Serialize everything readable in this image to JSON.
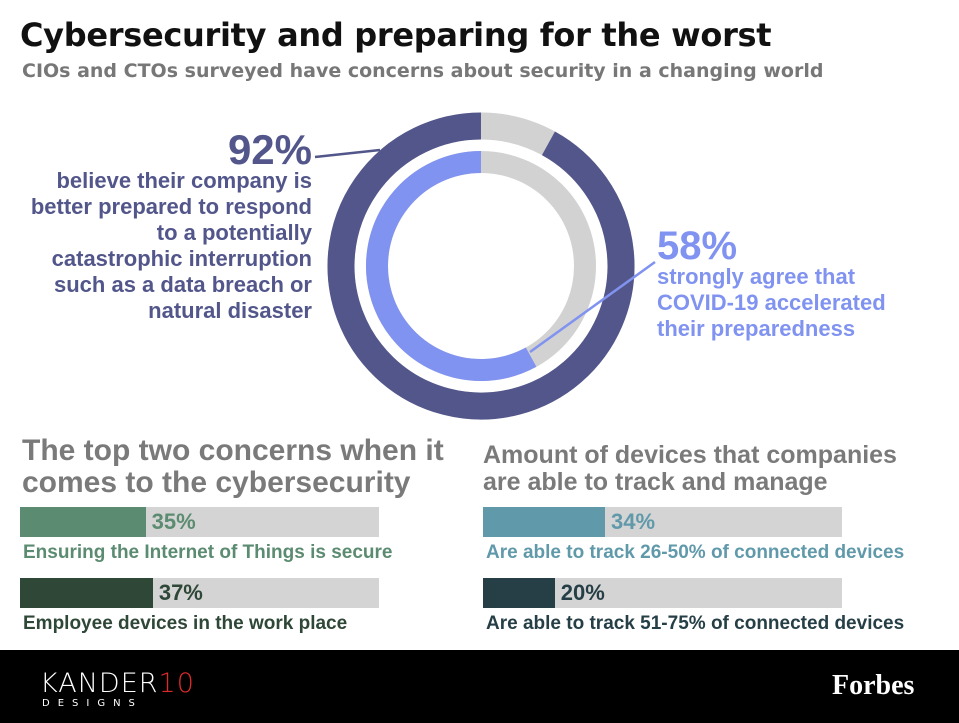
{
  "title": "Cybersecurity and preparing for the worst",
  "subtitle": "CIOs and CTOs surveyed have concerns about security in a changing world",
  "chart_data": [
    {
      "type": "donut",
      "series": [
        {
          "name": "believe their company is better prepared to respond to a potentially catastrophic interruption such as a data breach or natural disaster",
          "value": 92,
          "value_label": "92%",
          "color": "#52568a"
        },
        {
          "name": "strongly agree that COVID-19 accelerated their preparedness",
          "value": 58,
          "value_label": "58%",
          "color": "#8193f0"
        }
      ],
      "ylim": [
        0,
        100
      ],
      "track_color": "#d2d2d2"
    },
    {
      "type": "bar",
      "title": "The top two concerns when it comes to the cybersecurity",
      "categories": [
        "Ensuring the Internet of Things is secure",
        "Employee devices in the work place"
      ],
      "values": [
        35,
        37
      ],
      "value_labels": [
        "35%",
        "37%"
      ],
      "colors": [
        "#5b8b70",
        "#2e4737"
      ],
      "xlim": [
        0,
        100
      ],
      "track_color": "#d4d4d4"
    },
    {
      "type": "bar",
      "title": "Amount of devices that companies are able to track and manage",
      "categories": [
        "Are able to track 26-50% of connected devices",
        "Are able to track 51-75% of connected devices"
      ],
      "values": [
        34,
        20
      ],
      "value_labels": [
        "34%",
        "20%"
      ],
      "colors": [
        "#6099aa",
        "#263f47"
      ],
      "xlim": [
        0,
        100
      ],
      "track_color": "#d4d4d4"
    }
  ],
  "footer": {
    "logo_left": [
      "KANDER",
      "10"
    ],
    "logo_left_sub": "DESIGNS",
    "logo_right": "Forbes"
  }
}
